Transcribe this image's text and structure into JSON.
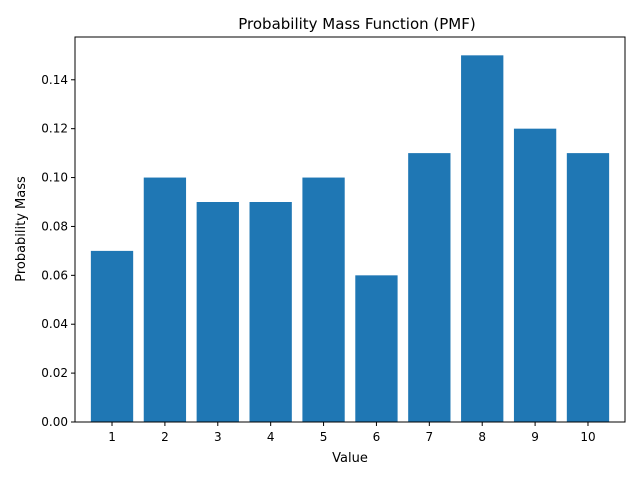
{
  "chart_data": {
    "type": "bar",
    "title": "Probability Mass Function (PMF)",
    "xlabel": "Value",
    "ylabel": "Probability Mass",
    "categories": [
      "1",
      "2",
      "3",
      "4",
      "5",
      "6",
      "7",
      "8",
      "9",
      "10"
    ],
    "values": [
      0.07,
      0.1,
      0.09,
      0.09,
      0.1,
      0.06,
      0.11,
      0.15,
      0.12,
      0.11
    ],
    "ylim": [
      0,
      0.1575
    ],
    "yticks": [
      "0.00",
      "0.02",
      "0.04",
      "0.06",
      "0.08",
      "0.10",
      "0.12",
      "0.14"
    ],
    "bar_color": "#1f77b4",
    "grid": false,
    "legend": false
  }
}
